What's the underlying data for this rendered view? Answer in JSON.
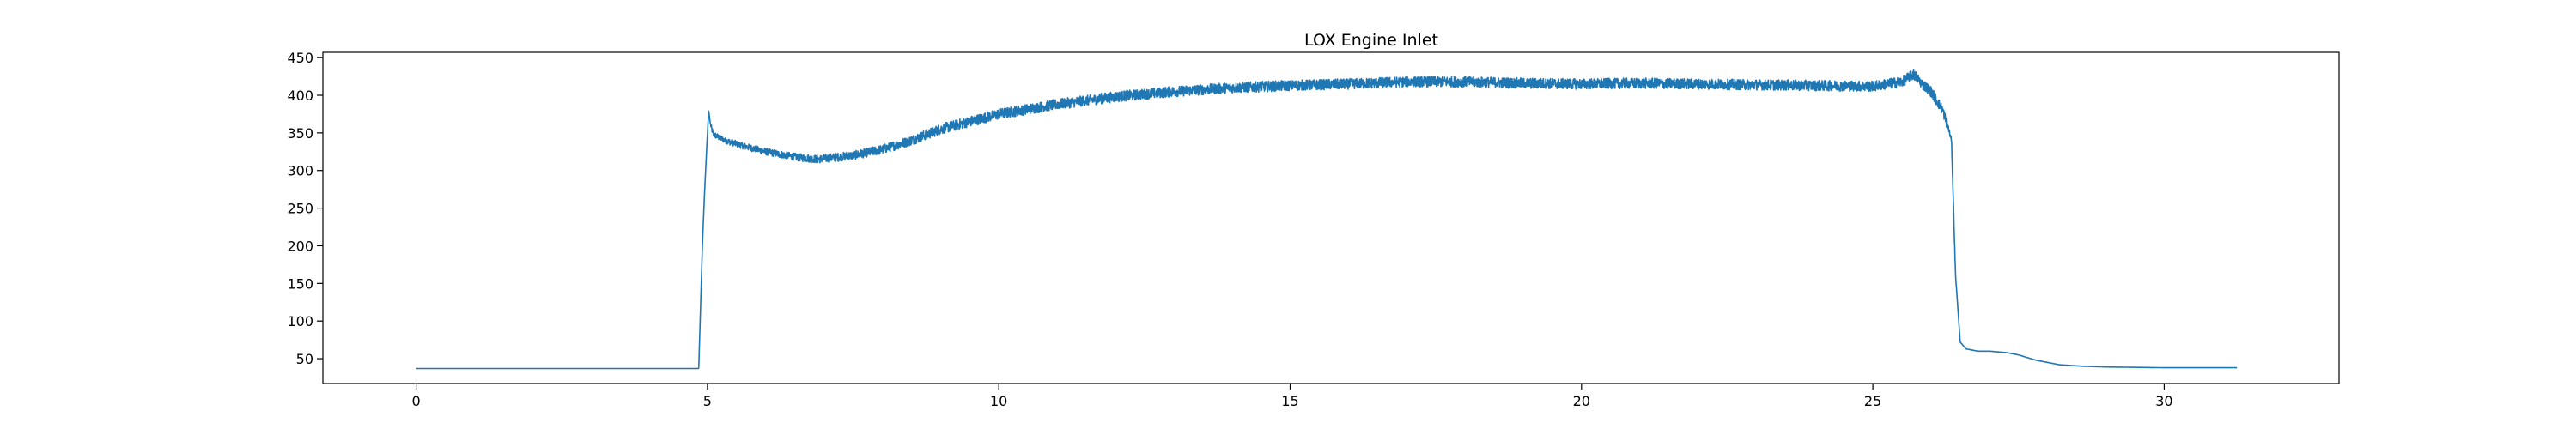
{
  "chart_data": {
    "type": "line",
    "title": "LOX Engine Inlet",
    "xlabel": "",
    "ylabel": "",
    "xlim": [
      -1.6,
      33.0
    ],
    "ylim": [
      17,
      457
    ],
    "xticks": [
      0,
      5,
      10,
      15,
      20,
      25,
      30
    ],
    "yticks": [
      50,
      100,
      150,
      200,
      250,
      300,
      350,
      400,
      450
    ],
    "grid": false,
    "line_color": "#1f77b4",
    "series": [
      {
        "x": [
          0,
          1,
          2,
          3,
          4,
          4.85,
          4.92,
          4.95,
          5.02,
          5.05,
          5.1,
          5.3,
          5.6,
          6.0,
          6.5,
          6.9,
          7.5,
          8.0,
          8.5,
          9.0,
          9.5,
          10.0,
          11.0,
          12.0,
          13.0,
          14.0,
          15.0,
          16.0,
          17.0,
          18.0,
          19.0,
          20.0,
          21.0,
          22.0,
          23.0,
          24.0,
          25.0,
          25.5,
          25.7,
          25.85,
          26.0,
          26.2,
          26.3,
          26.35,
          26.42,
          26.5,
          26.6,
          26.8,
          27.0,
          27.3,
          27.5,
          27.8,
          28.2,
          28.6,
          29.0,
          30.0,
          31.0,
          31.25
        ],
        "y": [
          37,
          37,
          37,
          37,
          37,
          37,
          215,
          270,
          380,
          362,
          348,
          340,
          333,
          325,
          318,
          315,
          320,
          328,
          340,
          355,
          365,
          375,
          388,
          398,
          405,
          410,
          413,
          415,
          418,
          418,
          416,
          415,
          416,
          415,
          414,
          413,
          412,
          418,
          428,
          415,
          405,
          380,
          355,
          340,
          160,
          72,
          63,
          60,
          60,
          58,
          55,
          48,
          42,
          40,
          39,
          38,
          38,
          38
        ],
        "noise": 7
      }
    ]
  }
}
